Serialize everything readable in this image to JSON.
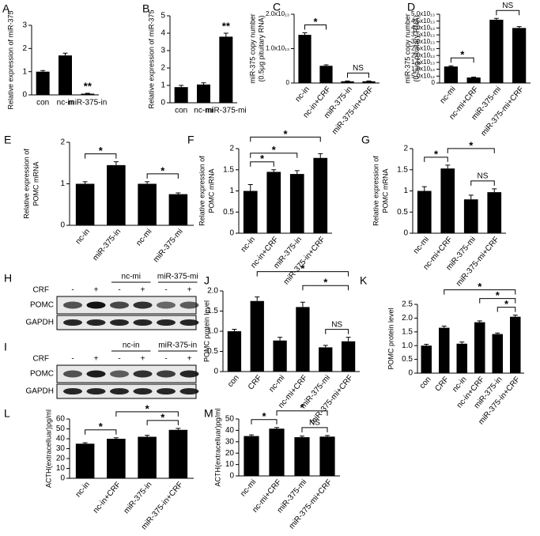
{
  "chart_data": [
    {
      "type": "bar",
      "label": "A",
      "ylabel": "Relative expression of miR-375",
      "categories": [
        "con",
        "nc-in",
        "miR-375-in"
      ],
      "values": [
        1.0,
        1.7,
        0.05
      ],
      "errors": [
        0.05,
        0.1,
        0.02
      ],
      "color": "#000000",
      "ylim": [
        0,
        3
      ],
      "yticks": [
        0,
        1,
        2,
        3
      ],
      "annotations": [
        "**"
      ]
    },
    {
      "type": "bar",
      "label": "B",
      "ylabel": "Relative expression of miR-375",
      "categories": [
        "con",
        "nc-mi",
        "miR-375-mi"
      ],
      "values": [
        0.9,
        1.05,
        3.8
      ],
      "errors": [
        0.1,
        0.1,
        0.2
      ],
      "color": "#000000",
      "ylim": [
        0,
        5
      ],
      "yticks": [
        0,
        1,
        2,
        3,
        4,
        5
      ],
      "annotations": [
        "**"
      ]
    },
    {
      "type": "bar",
      "label": "C",
      "ylabel": [
        "miR-375 copy number",
        "(0.5μg pituitary RNA)"
      ],
      "categories": [
        "nc-in",
        "nc-in+CRF",
        "miR-375-in",
        "miR-375-in+CRF"
      ],
      "values": [
        14000000000000,
        5000000000000,
        500000000000,
        500000000000
      ],
      "errors": [
        600000000000,
        300000000000,
        100000000000,
        100000000000
      ],
      "color": "#000000",
      "ylim": [
        0,
        20000000000000
      ],
      "yticks": [
        0,
        {
          "value": 10000000000000,
          "label": "1.0x10₁₃"
        },
        {
          "value": 20000000000000,
          "label": "2.0x10₁₃"
        }
      ],
      "annotations": [
        "*",
        "NS"
      ]
    },
    {
      "type": "bar",
      "label": "D",
      "ylabel": [
        "miR-375 copy number",
        "(0.5μg pituitary RNA)"
      ],
      "categories": [
        "nc-mi",
        "nc-mi+CRF",
        "miR-375-mi",
        "miR-375-mi+CRF"
      ],
      "values": [
        12000000000000,
        4000000000000,
        46000000000000,
        40000000000000
      ],
      "errors": [
        500000000000,
        300000000000,
        1000000000000,
        1000000000000
      ],
      "color": "#000000",
      "ylim": [
        0,
        50000000000000
      ],
      "yticks": [
        0,
        {
          "value": 5000000000000,
          "label": "5.0x10₁₂"
        },
        {
          "value": 10000000000000,
          "label": "1.0x10₁₃"
        },
        {
          "value": 15000000000000,
          "label": "1.5x10₁₃"
        },
        {
          "value": 20000000000000,
          "label": "2.0x10₁₃"
        },
        {
          "value": 25000000000000,
          "label": "2.5x10₁₃"
        },
        {
          "value": 30000000000000,
          "label": "3.0x10₁₃"
        },
        {
          "value": 35000000000000,
          "label": "3.5x10₁₃"
        },
        {
          "value": 40000000000000,
          "label": "4.0x10₁₃"
        },
        {
          "value": 45000000000000,
          "label": "4.5x10₁₃"
        },
        {
          "value": 50000000000000,
          "label": "5.0x10₁₃"
        }
      ],
      "annotations": [
        "*",
        "NS"
      ]
    },
    {
      "type": "bar",
      "label": "E",
      "ylabel": [
        "Relative expression of",
        "POMC mRNA"
      ],
      "categories": [
        "nc-in",
        "miR-375-in",
        "nc-mi",
        "miR-375-mi"
      ],
      "values": [
        1.0,
        1.45,
        1.0,
        0.75
      ],
      "errors": [
        0.05,
        0.08,
        0.05,
        0.03
      ],
      "color": "#000000",
      "ylim": [
        0,
        2
      ],
      "yticks": [
        0,
        1,
        2
      ],
      "annotations": [
        "*",
        "*"
      ]
    },
    {
      "type": "bar",
      "label": "F",
      "ylabel": [
        "Relative expression of",
        "POMC mRNA"
      ],
      "categories": [
        "nc-in",
        "nc-in+CRF",
        "miR-375-in",
        "miR-375-in+CRF"
      ],
      "values": [
        1.0,
        1.45,
        1.4,
        1.78
      ],
      "errors": [
        0.15,
        0.05,
        0.08,
        0.1
      ],
      "color": "#000000",
      "ylim": [
        0,
        2
      ],
      "yticks": [
        0,
        0.5,
        1,
        1.5,
        2
      ],
      "annotations": [
        "*",
        "*",
        "*"
      ]
    },
    {
      "type": "bar",
      "label": "G",
      "ylabel": [
        "Relative expression of",
        "POMC mRNA"
      ],
      "categories": [
        "nc-mi",
        "nc-mi+CRF",
        "miR-375-mi",
        "miR-375-mi+CRF"
      ],
      "values": [
        1.0,
        1.53,
        0.8,
        0.97
      ],
      "errors": [
        0.1,
        0.08,
        0.1,
        0.08
      ],
      "color": "#000000",
      "ylim": [
        0,
        2
      ],
      "yticks": [
        0,
        0.5,
        1,
        1.5,
        2
      ],
      "annotations": [
        "*",
        "*",
        "NS"
      ]
    },
    {
      "type": "bar",
      "label": "J",
      "ylabel": "POMC protein level",
      "categories": [
        "con",
        "CRF",
        "nc-mi",
        "nc-mi+CRF",
        "miR-375-mi",
        "miR-375-mi+CRF"
      ],
      "values": [
        1.0,
        1.75,
        0.77,
        1.6,
        0.6,
        0.75
      ],
      "errors": [
        0.05,
        0.1,
        0.08,
        0.12,
        0.05,
        0.1
      ],
      "color": "#000000",
      "ylim": [
        0,
        2
      ],
      "yticks": [
        0,
        0.5,
        {
          "value": 1,
          "label": "1.0"
        },
        1.5,
        {
          "value": 2,
          "label": "2.0"
        }
      ],
      "annotations": [
        "*",
        "*",
        "NS"
      ]
    },
    {
      "type": "bar",
      "label": "K",
      "ylabel": "POMC protein level",
      "categories": [
        "con",
        "CRF",
        "nc-in",
        "nc-in+CRF",
        "miR-375-in",
        "miR-375-in+CRF"
      ],
      "values": [
        1.0,
        1.65,
        1.07,
        1.85,
        1.42,
        2.05
      ],
      "errors": [
        0.05,
        0.06,
        0.06,
        0.05,
        0.04,
        0.06
      ],
      "color": "#000000",
      "ylim": [
        0,
        2.5
      ],
      "yticks": [
        0,
        0.5,
        {
          "value": 1,
          "label": "1.0"
        },
        1.5,
        {
          "value": 2,
          "label": "2.0"
        },
        2.5
      ],
      "annotations": [
        "*",
        "*",
        "*"
      ]
    },
    {
      "type": "bar",
      "label": "L",
      "ylabel": "ACTH(extracelluar)pg/ml",
      "categories": [
        "nc-in",
        "nc-in+CRF",
        "miR-375-in",
        "miR-375-in+CRF"
      ],
      "values": [
        35,
        40,
        42,
        49
      ],
      "errors": [
        1,
        1,
        1.5,
        1.5
      ],
      "color": "#000000",
      "ylim": [
        0,
        60
      ],
      "yticks": [
        0,
        10,
        20,
        30,
        40,
        50,
        60
      ],
      "annotations": [
        "*",
        "*",
        "*"
      ]
    },
    {
      "type": "bar",
      "label": "M",
      "ylabel": "ACTH(extracelluar)pg/ml",
      "categories": [
        "nc-mi",
        "nc-mi+CRF",
        "miR-375-mi",
        "miR-375-mi+CRF"
      ],
      "values": [
        35,
        41.5,
        34,
        34.5
      ],
      "errors": [
        1,
        1,
        1,
        1
      ],
      "color": "#000000",
      "ylim": [
        0,
        50
      ],
      "yticks": [
        0,
        10,
        20,
        30,
        40,
        50
      ],
      "annotations": [
        "*",
        "*",
        "NS"
      ]
    }
  ],
  "blots": [
    {
      "label": "H",
      "treatment": "CRF",
      "signs": [
        "-",
        "+",
        "-",
        "+",
        "-",
        "+"
      ],
      "groups": [
        "nc-mi",
        "miR-375-mi"
      ],
      "rows": [
        "POMC",
        "GAPDH"
      ]
    },
    {
      "label": "I",
      "treatment": "CRF",
      "signs": [
        "-",
        "+",
        "-",
        "+",
        "-",
        "+"
      ],
      "groups": [
        "nc-in",
        "miR-375-in"
      ],
      "rows": [
        "POMC",
        "GAPDH"
      ]
    }
  ]
}
